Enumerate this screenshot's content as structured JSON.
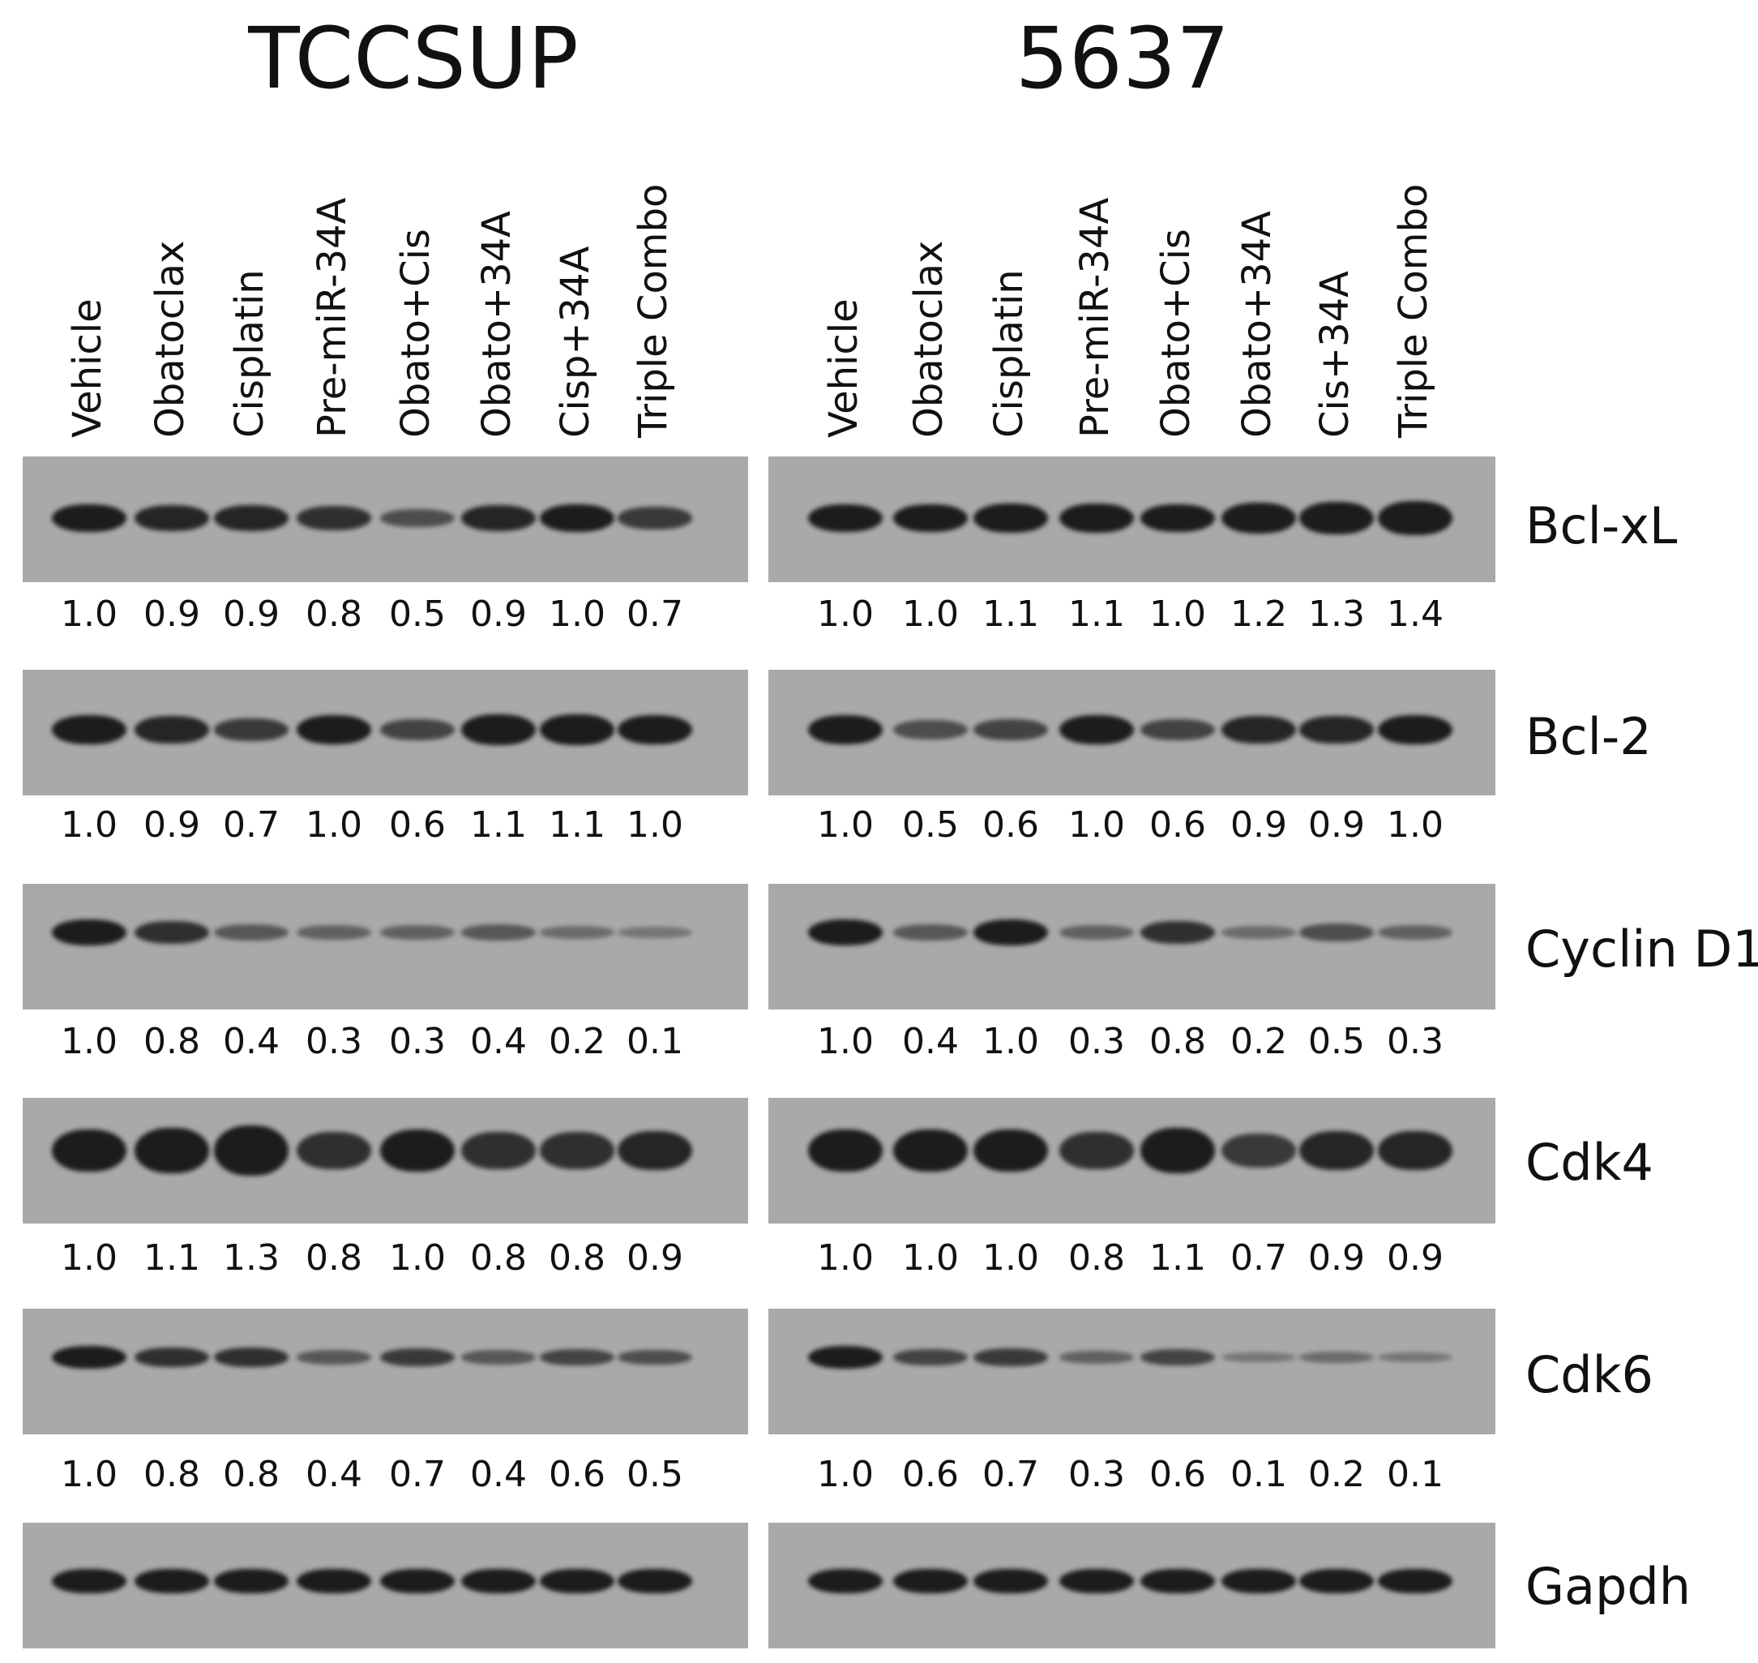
{
  "panels": [
    {
      "cell_line": "TCCSUP",
      "lanes": [
        "Vehicle",
        "Obatoclax",
        "Cisplatin",
        "Pre-miR-34A",
        "Obato+Cis",
        "Obato+34A",
        "Cisp+34A",
        "Triple Combo"
      ],
      "quantification": {
        "Bcl-xL": [
          "1.0",
          "0.9",
          "0.9",
          "0.8",
          "0.5",
          "0.9",
          "1.0",
          "0.7"
        ],
        "Bcl-2": [
          "1.0",
          "0.9",
          "0.7",
          "1.0",
          "0.6",
          "1.1",
          "1.1",
          "1.0"
        ],
        "Cyclin D1": [
          "1.0",
          "0.8",
          "0.4",
          "0.3",
          "0.3",
          "0.4",
          "0.2",
          "0.1"
        ],
        "Cdk4": [
          "1.0",
          "1.1",
          "1.3",
          "0.8",
          "1.0",
          "0.8",
          "0.8",
          "0.9"
        ],
        "Cdk6": [
          "1.0",
          "0.8",
          "0.8",
          "0.4",
          "0.7",
          "0.4",
          "0.6",
          "0.5"
        ]
      }
    },
    {
      "cell_line": "5637",
      "lanes": [
        "Vehicle",
        "Obatoclax",
        "Cisplatin",
        "Pre-miR-34A",
        "Obato+Cis",
        "Obato+34A",
        "Cis+34A",
        "Triple Combo"
      ],
      "quantification": {
        "Bcl-xL": [
          "1.0",
          "1.0",
          "1.1",
          "1.1",
          "1.0",
          "1.2",
          "1.3",
          "1.4"
        ],
        "Bcl-2": [
          "1.0",
          "0.5",
          "0.6",
          "1.0",
          "0.6",
          "0.9",
          "0.9",
          "1.0"
        ],
        "Cyclin D1": [
          "1.0",
          "0.4",
          "1.0",
          "0.3",
          "0.8",
          "0.2",
          "0.5",
          "0.3"
        ],
        "Cdk4": [
          "1.0",
          "1.0",
          "1.0",
          "0.8",
          "1.1",
          "0.7",
          "0.9",
          "0.9"
        ],
        "Cdk6": [
          "1.0",
          "0.6",
          "0.7",
          "0.3",
          "0.6",
          "0.1",
          "0.2",
          "0.1"
        ]
      }
    }
  ],
  "proteins": [
    "Bcl-xL",
    "Bcl-2",
    "Cyclin D1",
    "Cdk4",
    "Cdk6",
    "Gapdh"
  ],
  "colors": {
    "membrane": "#a9a9a9",
    "band": "#1c1c1c",
    "text": "#111111"
  }
}
